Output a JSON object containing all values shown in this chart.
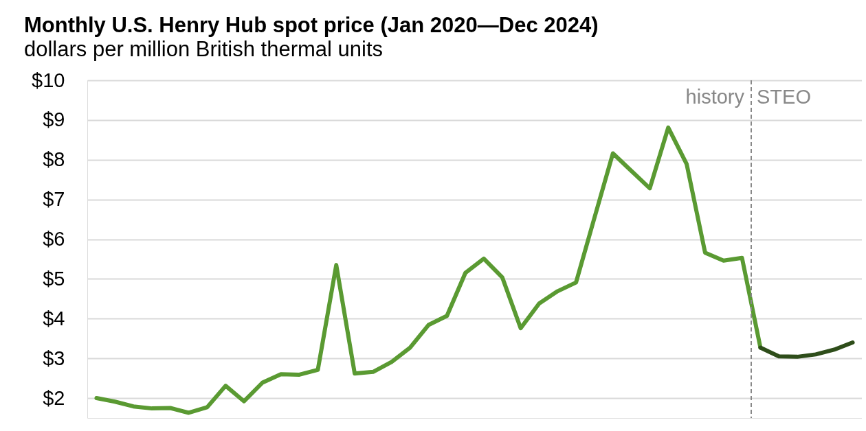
{
  "chart_data": {
    "type": "line",
    "title": "Monthly U.S. Henry Hub spot price (Jan 2020—Dec 2024)",
    "subtitle": "dollars per million British thermal units",
    "categories": [
      null,
      null,
      null,
      null,
      null,
      null,
      null,
      null,
      null,
      null,
      null,
      null,
      null,
      null,
      null,
      null,
      null,
      null,
      null,
      null,
      null,
      null,
      null,
      null,
      null,
      null,
      null,
      null,
      null,
      null,
      null,
      null,
      null,
      null,
      null,
      null,
      null,
      null,
      null,
      null,
      null,
      null
    ],
    "series": [
      {
        "color": "#5a9a32",
        "values": [
          2.0,
          1.91,
          1.79,
          1.74,
          1.75,
          1.63,
          1.77,
          2.31,
          1.92,
          2.39,
          2.6,
          2.59,
          2.71,
          5.35,
          2.62,
          2.66,
          2.91,
          3.27,
          3.84,
          4.07,
          5.15,
          5.51,
          5.04,
          3.76,
          4.38,
          4.69,
          4.91,
          6.54,
          8.16,
          7.72,
          7.28,
          8.81,
          7.89,
          5.66,
          5.46,
          5.53,
          3.27,
          null,
          null,
          null,
          null,
          null
        ]
      },
      {
        "color": "#2e4d1a",
        "values": [
          null,
          null,
          null,
          null,
          null,
          null,
          null,
          null,
          null,
          null,
          null,
          null,
          null,
          null,
          null,
          null,
          null,
          null,
          null,
          null,
          null,
          null,
          null,
          null,
          null,
          null,
          null,
          null,
          null,
          null,
          null,
          null,
          null,
          null,
          null,
          null,
          3.27,
          3.05,
          3.04,
          3.1,
          3.22,
          3.4
        ]
      }
    ],
    "ylim": [
      1.5,
      10
    ],
    "yticks": [
      {
        "value": 2,
        "label": "$2"
      },
      {
        "value": 3,
        "label": "$3"
      },
      {
        "value": 4,
        "label": "$4"
      },
      {
        "value": 5,
        "label": "$5"
      },
      {
        "value": 6,
        "label": "$6"
      },
      {
        "value": 7,
        "label": "$7"
      },
      {
        "value": 8,
        "label": "$8"
      },
      {
        "value": 9,
        "label": "$9"
      },
      {
        "value": 10,
        "label": "$10"
      }
    ],
    "grid": "y",
    "tick_labels": "y",
    "annotations": [
      "history",
      "STEO"
    ]
  }
}
